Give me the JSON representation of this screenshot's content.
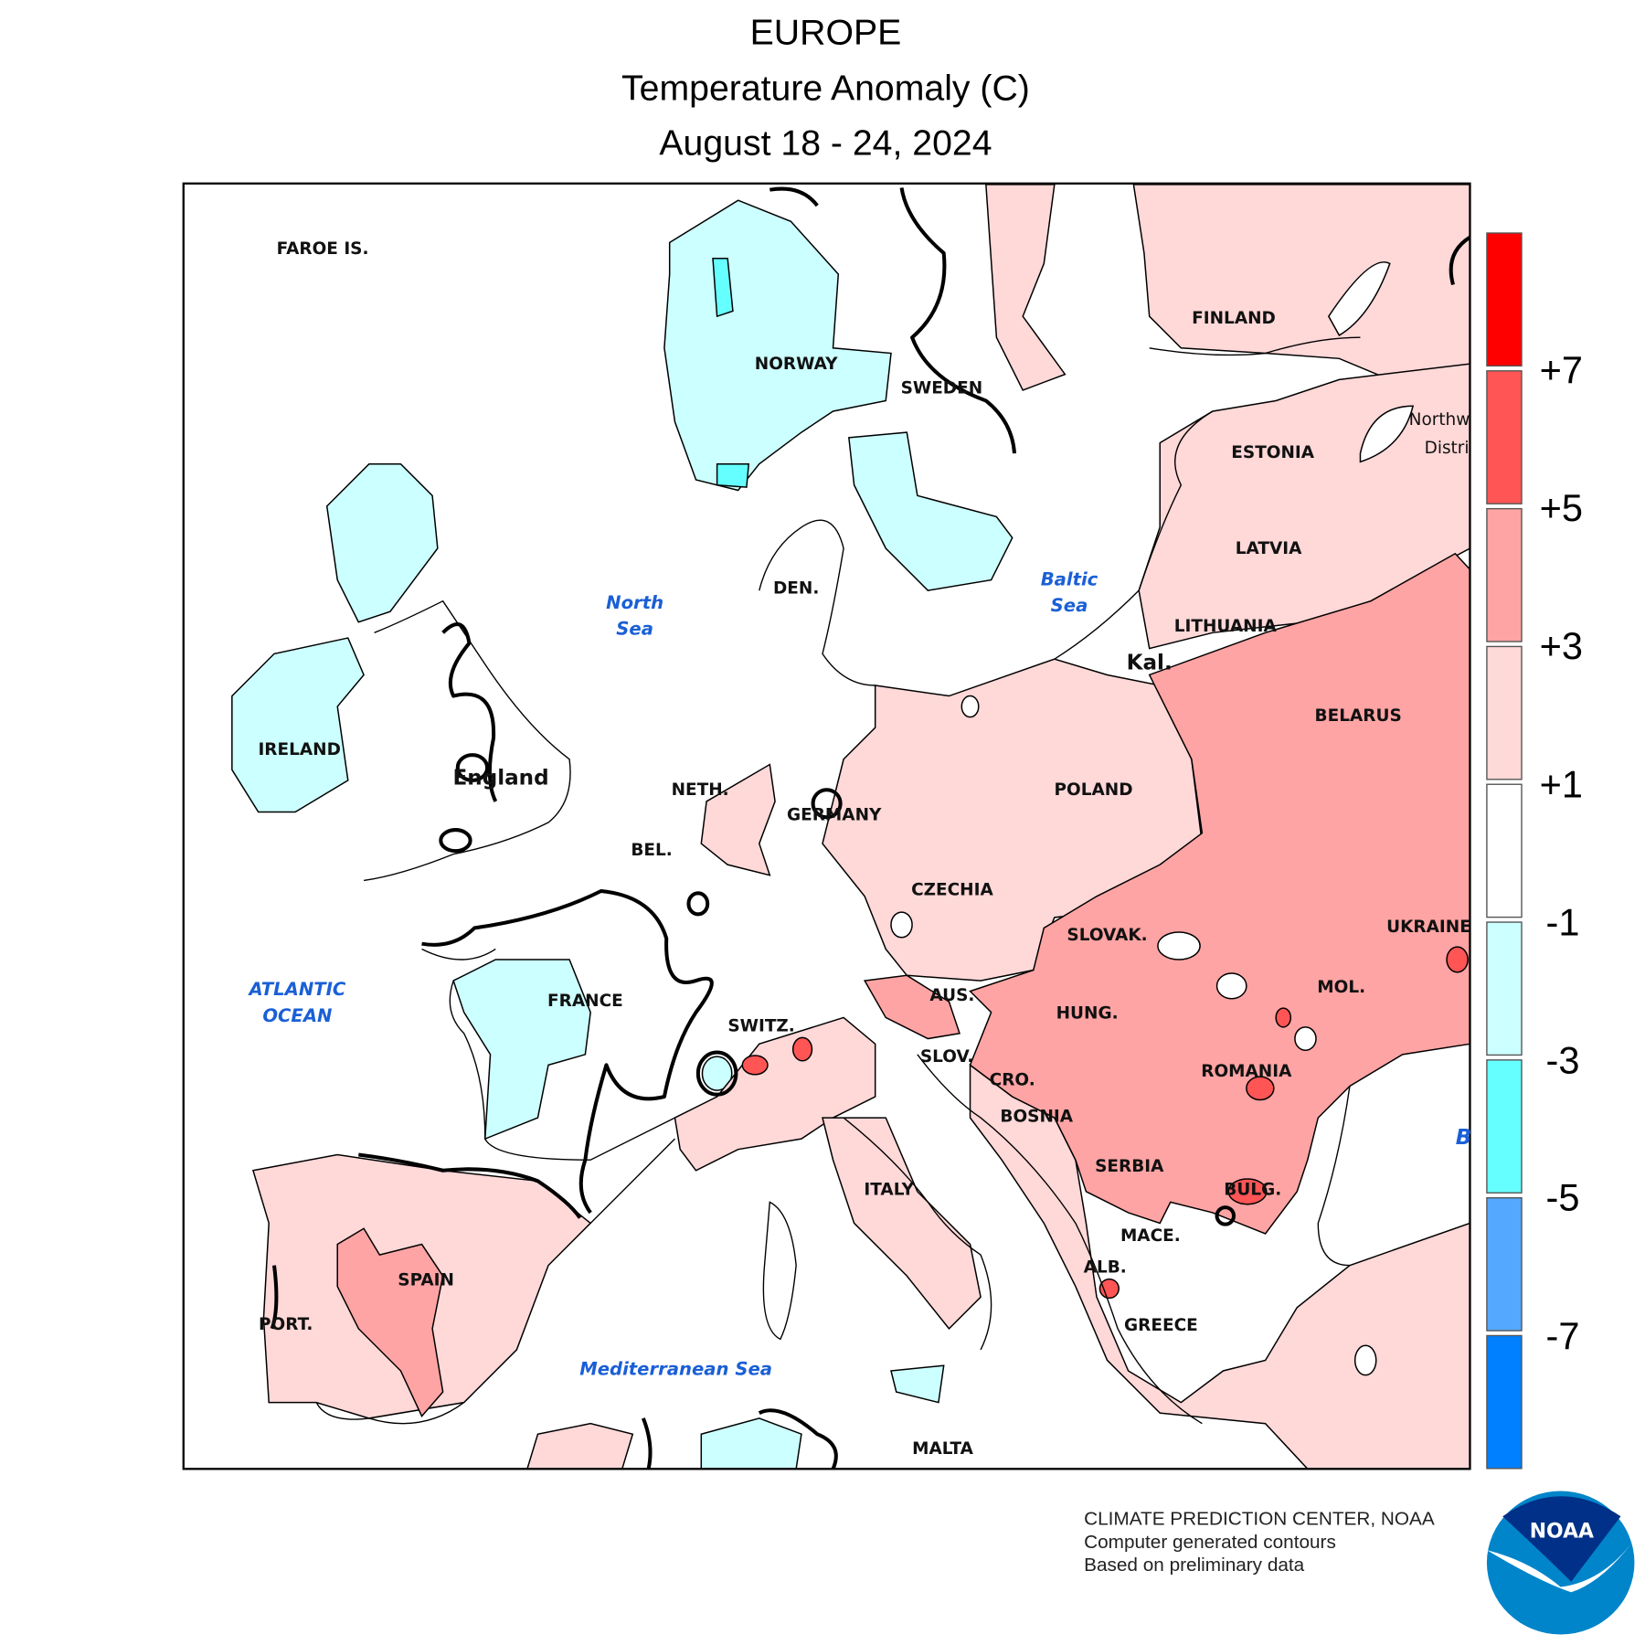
{
  "title": {
    "line1": "EUROPE",
    "line2": "Temperature Anomaly (C)",
    "line3": "August 18 - 24, 2024"
  },
  "legend": {
    "labels": [
      "+7",
      "+5",
      "+3",
      "+1",
      "-1",
      "-3",
      "-5",
      "-7"
    ],
    "colors": [
      "#ff0000",
      "#ff5555",
      "#ffa4a4",
      "#ffd8d8",
      "#ffffff",
      "#ccffff",
      "#66ffff",
      "#55a8ff",
      "#0080ff"
    ]
  },
  "labels": {
    "countries": [
      "FAROE IS.",
      "NORWAY",
      "SWEDEN",
      "FINLAND",
      "Northw",
      "Distri",
      "ESTONIA",
      "LATVIA",
      "LITHUANIA",
      "Kal.",
      "BELARUS",
      "POLAND",
      "GERMANY",
      "NETH.",
      "BEL.",
      "DEN.",
      "England",
      "IRELAND",
      "CZECHIA",
      "SLOVAK.",
      "UKRAINE",
      "MOL.",
      "AUS.",
      "HUNG.",
      "SWITZ.",
      "FRANCE",
      "SLOV.",
      "CRO.",
      "ROMANIA",
      "BOSNIA",
      "SERBIA",
      "BULG.",
      "ITALY",
      "MACE.",
      "ALB.",
      "GREECE",
      "SPAIN",
      "PORT.",
      "MALTA"
    ],
    "seas": [
      "North",
      "Sea",
      "Baltic",
      "Sea",
      "ATLANTIC",
      "OCEAN",
      "Mediterranean Sea",
      "B"
    ]
  },
  "credit": {
    "line1": "CLIMATE PREDICTION CENTER, NOAA",
    "line2": "Computer generated contours",
    "line3": "Based on preliminary data"
  },
  "logo": {
    "text": "NOAA",
    "dark": "#003087",
    "light": "#0085ca"
  }
}
